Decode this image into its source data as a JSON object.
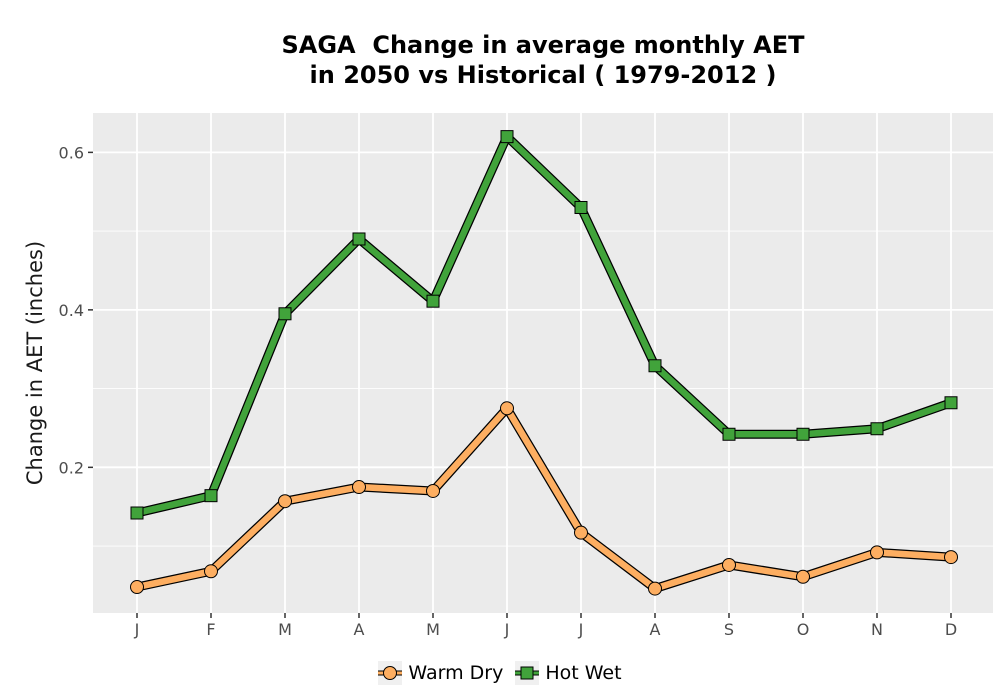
{
  "chart_data": {
    "type": "line",
    "title_lines": [
      "SAGA  Change in average monthly AET",
      "in 2050 vs Historical ( 1979-2012 )"
    ],
    "xlabel": "",
    "ylabel": "Change in AET (inches)",
    "categories": [
      "J",
      "F",
      "M",
      "A",
      "M",
      "J",
      "J",
      "A",
      "S",
      "O",
      "N",
      "D"
    ],
    "series": [
      {
        "name": "Warm Dry",
        "marker": "circle",
        "color": "#fdae61",
        "values": [
          0.048,
          0.068,
          0.157,
          0.175,
          0.17,
          0.275,
          0.117,
          0.046,
          0.076,
          0.061,
          0.092,
          0.086
        ]
      },
      {
        "name": "Hot Wet",
        "marker": "square",
        "color": "#41a33b",
        "values": [
          0.142,
          0.164,
          0.395,
          0.49,
          0.411,
          0.62,
          0.53,
          0.329,
          0.242,
          0.242,
          0.249,
          0.282
        ]
      }
    ],
    "yticks": [
      0.2,
      0.4,
      0.6
    ],
    "ytick_labels": [
      "0.2",
      "0.4",
      "0.6"
    ],
    "ylim": [
      0.015,
      0.65
    ],
    "grid": true,
    "legend_position": "bottom",
    "panel_color": "#ebebeb",
    "gridline_color": "#ffffff"
  }
}
